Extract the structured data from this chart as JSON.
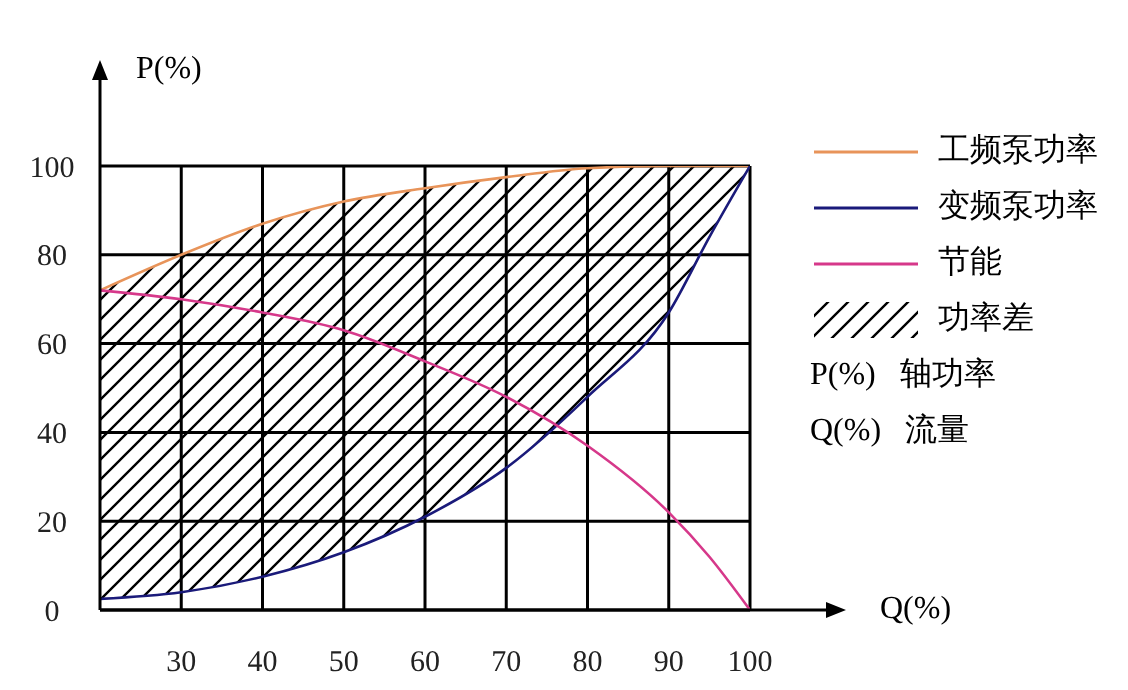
{
  "chart_data": {
    "type": "line",
    "xlabel": "Q(%)",
    "ylabel": "P(%)",
    "x": [
      20,
      30,
      40,
      50,
      60,
      70,
      80,
      90,
      95,
      100
    ],
    "xlim": [
      20,
      100
    ],
    "xticks": [
      30,
      40,
      50,
      60,
      70,
      80,
      90,
      100
    ],
    "ylim": [
      0,
      100
    ],
    "yticks": [
      0,
      20,
      40,
      60,
      80,
      100
    ],
    "grid": true,
    "legend": "right",
    "marker": "none",
    "line_style": "solid",
    "series": [
      {
        "name": "功率差",
        "type": "area",
        "color": "#000000",
        "values": [
          null,
          null,
          null,
          null,
          null,
          null,
          null,
          null,
          null,
          null
        ],
        "lower": [
          2.5,
          4,
          7.5,
          13,
          21,
          32,
          48,
          67,
          84,
          100
        ],
        "upper": [
          72,
          80,
          87,
          92,
          95,
          97.5,
          99.5,
          100,
          100,
          100
        ]
      },
      {
        "name": "工频泵功率",
        "color": "#e8945a",
        "values": [
          72,
          80,
          87,
          92,
          95,
          97.5,
          99.5,
          100,
          100,
          100
        ]
      },
      {
        "name": "变频泵功率",
        "color": "#1a1a7a",
        "values": [
          2.5,
          4,
          7.5,
          13,
          21,
          32,
          48,
          67,
          84,
          100
        ]
      },
      {
        "name": "节能",
        "color": "#d6388a",
        "values": [
          72,
          70,
          67,
          63,
          56,
          48,
          37,
          22,
          12,
          0
        ]
      }
    ],
    "annotations": [
      "P(%)   轴功率",
      "Q(%)   流量"
    ]
  }
}
